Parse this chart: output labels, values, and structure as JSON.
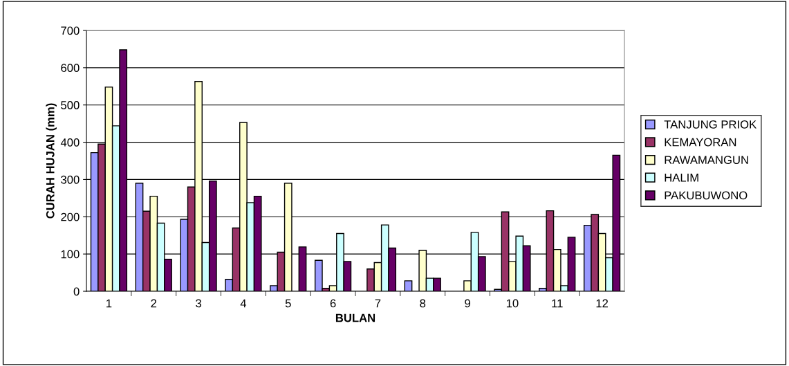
{
  "chart_data": {
    "type": "bar",
    "xlabel": "BULAN",
    "ylabel": "CURAH HUJAN (mm)",
    "categories": [
      "1",
      "2",
      "3",
      "4",
      "5",
      "6",
      "7",
      "8",
      "9",
      "10",
      "11",
      "12"
    ],
    "series": [
      {
        "name": "TANJUNG PRIOK",
        "color": "#9999ff",
        "values": [
          372,
          290,
          193,
          32,
          15,
          83,
          0,
          28,
          0,
          5,
          8,
          177
        ]
      },
      {
        "name": "KEMAYORAN",
        "color": "#993366",
        "values": [
          395,
          215,
          280,
          170,
          105,
          8,
          60,
          0,
          0,
          213,
          216,
          206
        ]
      },
      {
        "name": "RAWAMANGUN",
        "color": "#ffffcc",
        "values": [
          548,
          255,
          563,
          453,
          290,
          15,
          77,
          110,
          28,
          80,
          112,
          155
        ]
      },
      {
        "name": "HALIM",
        "color": "#ccffff",
        "values": [
          444,
          183,
          131,
          238,
          0,
          155,
          178,
          35,
          158,
          148,
          15,
          90
        ]
      },
      {
        "name": "PAKUBUWONO",
        "color": "#660066",
        "values": [
          648,
          86,
          296,
          255,
          119,
          80,
          116,
          35,
          93,
          122,
          145,
          365
        ]
      }
    ],
    "ylim": [
      0,
      700
    ],
    "yticks": [
      0,
      100,
      200,
      300,
      400,
      500,
      600,
      700
    ],
    "grid": "y",
    "legend": "right"
  }
}
